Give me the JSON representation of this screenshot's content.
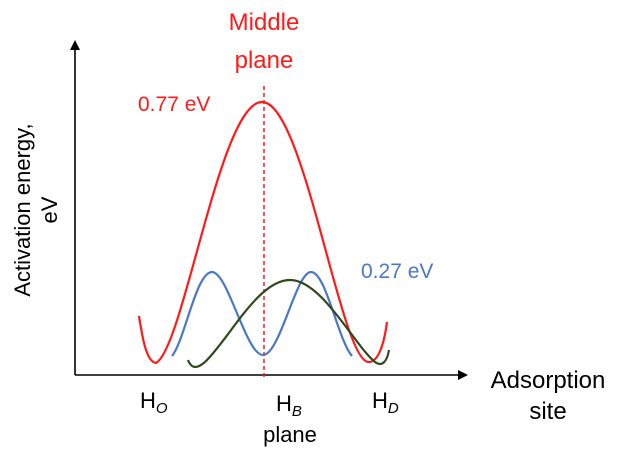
{
  "axes": {
    "y_label_line1": "Activation energy,",
    "y_label_line2": "eV",
    "x_label_line1": "Adsorption",
    "x_label_line2": "site"
  },
  "middle_plane": {
    "line1": "Middle",
    "line2": "plane",
    "color": "#ff1a1a"
  },
  "barriers": {
    "high": {
      "value_label": "0.77 eV",
      "color": "#ff1a1a"
    },
    "low": {
      "value_label": "0.27 eV",
      "color": "#4a78c8"
    },
    "third_curve_color": "#2f4a1c"
  },
  "sites": {
    "h_o": {
      "base": "H",
      "sub": "O"
    },
    "h_b": {
      "base": "H",
      "sub": "B",
      "extra": "plane"
    },
    "h_d": {
      "base": "H",
      "sub": "D"
    }
  }
}
